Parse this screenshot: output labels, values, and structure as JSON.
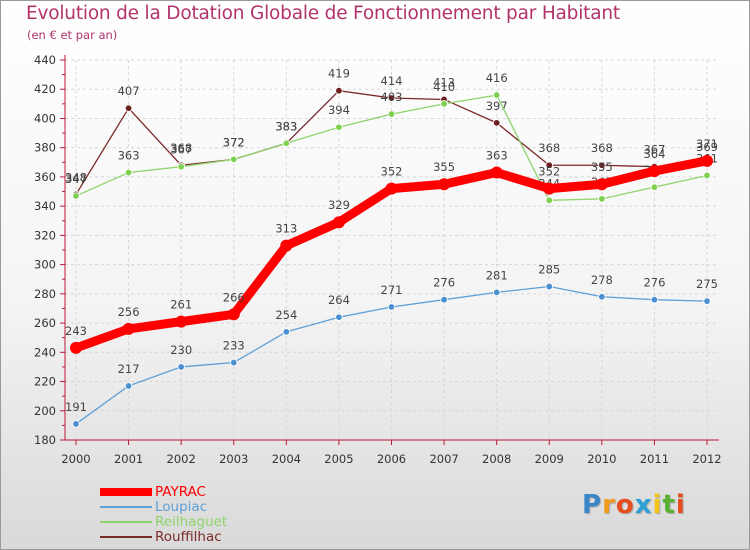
{
  "header": {
    "title": "Evolution de la Dotation Globale de Fonctionnement par Habitant",
    "subtitle": "(en € et par an)"
  },
  "logo": {
    "text": "Proxiti",
    "letters": [
      "P",
      "r",
      "o",
      "x",
      "i",
      "t",
      "i"
    ],
    "colors": [
      "#3a86c8",
      "#f39a1b",
      "#e74c1c",
      "#2e9fd8",
      "#f5c518",
      "#58b030",
      "#e74c1c"
    ]
  },
  "chart_data": {
    "type": "line",
    "title": "Evolution de la Dotation Globale de Fonctionnement par Habitant",
    "subtitle": "(en € et par an)",
    "xlabel": "",
    "ylabel": "",
    "ylim": [
      180,
      440
    ],
    "y_step": 20,
    "grid": true,
    "legend_position": "bottom-left",
    "x": [
      2000,
      2001,
      2002,
      2003,
      2004,
      2005,
      2006,
      2007,
      2008,
      2009,
      2010,
      2011,
      2012
    ],
    "x_tick_labels": [
      "2000",
      "2001",
      "2002",
      "2003",
      "2004",
      "2005",
      "2006",
      "2007",
      "2008",
      "2009",
      "2010",
      "2011",
      "2012"
    ],
    "y_tick_labels": [
      "180",
      "200",
      "220",
      "240",
      "260",
      "280",
      "300",
      "320",
      "340",
      "360",
      "380",
      "400",
      "420",
      "440"
    ],
    "series": [
      {
        "name": "Rouffilhac",
        "color": "#7b2a2a",
        "marker_color": "#6b1f1f",
        "emphasis": false,
        "values": [
          348,
          407,
          368,
          372,
          383,
          419,
          414,
          413,
          397,
          368,
          368,
          367,
          369
        ]
      },
      {
        "name": "Reilhaguet",
        "color": "#8fd46b",
        "marker_color": "#7ed050",
        "emphasis": false,
        "values": [
          347,
          363,
          367,
          372,
          383,
          394,
          403,
          410,
          416,
          344,
          345,
          353,
          361
        ]
      },
      {
        "name": "Loupiac",
        "color": "#5e9fd6",
        "marker_color": "#4a90d0",
        "emphasis": false,
        "values": [
          191,
          217,
          230,
          233,
          254,
          264,
          271,
          276,
          281,
          285,
          278,
          276,
          275
        ]
      },
      {
        "name": "PAYRAC",
        "color": "#ff0000",
        "marker_color": "#ff0000",
        "emphasis": true,
        "values": [
          243,
          256,
          261,
          266,
          313,
          329,
          352,
          355,
          363,
          352,
          355,
          364,
          371
        ]
      }
    ],
    "legend_order": [
      "PAYRAC",
      "Loupiac",
      "Reilhaguet",
      "Rouffilhac"
    ]
  }
}
